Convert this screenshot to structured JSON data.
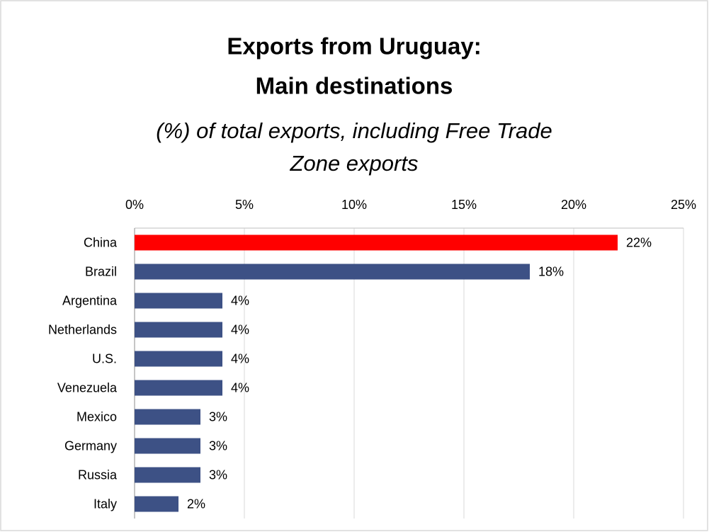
{
  "chart_data": {
    "type": "bar",
    "orientation": "horizontal",
    "title": [
      "Exports from Uruguay:",
      "Main destinations"
    ],
    "subtitle": [
      "(%) of total exports, including Free Trade",
      "Zone exports"
    ],
    "categories": [
      "China",
      "Brazil",
      "Argentina",
      "Netherlands",
      "U.S.",
      "Venezuela",
      "Mexico",
      "Germany",
      "Russia",
      "Italy"
    ],
    "values": [
      22,
      18,
      4,
      4,
      4,
      4,
      3,
      3,
      3,
      2
    ],
    "value_labels": [
      "22%",
      "18%",
      "4%",
      "4%",
      "4%",
      "4%",
      "3%",
      "3%",
      "3%",
      "2%"
    ],
    "colors": [
      "#ff0000",
      "#3d5185",
      "#3d5185",
      "#3d5185",
      "#3d5185",
      "#3d5185",
      "#3d5185",
      "#3d5185",
      "#3d5185",
      "#3d5185"
    ],
    "xlim": [
      0,
      25
    ],
    "xticks": [
      {
        "value": 0,
        "label": "0%"
      },
      {
        "value": 5,
        "label": "5%"
      },
      {
        "value": 10,
        "label": "10%"
      },
      {
        "value": 15,
        "label": "15%"
      },
      {
        "value": 20,
        "label": "20%"
      },
      {
        "value": 25,
        "label": "25%"
      }
    ],
    "grid": true
  }
}
